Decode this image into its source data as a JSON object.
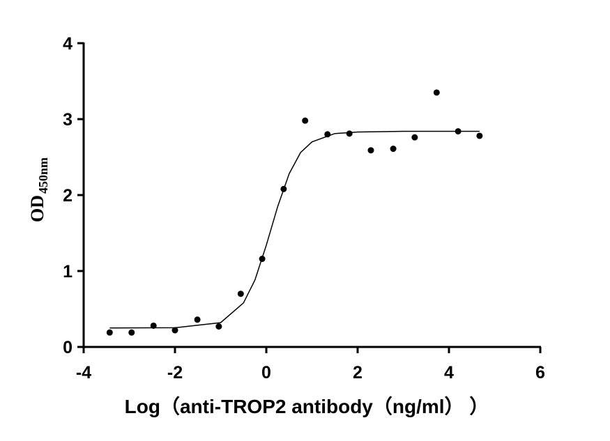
{
  "chart_data": {
    "type": "scatter",
    "x_label": "Log（anti-TROP2 antibody（ng/ml）  ）",
    "y_label": "OD",
    "y_label_subscript": "450nm",
    "xlim": [
      -4,
      6
    ],
    "xticks": [
      -4,
      -2,
      0,
      2,
      4,
      6
    ],
    "ylim": [
      0,
      4
    ],
    "yticks": [
      0,
      1,
      2,
      3,
      4
    ],
    "series": [
      {
        "style": "points",
        "color": "#000000",
        "x": [
          -3.43,
          -2.95,
          -2.47,
          -2.0,
          -1.51,
          -1.04,
          -0.56,
          -0.09,
          0.38,
          0.85,
          1.34,
          1.82,
          2.29,
          2.78,
          3.25,
          3.73,
          4.2,
          4.67
        ],
        "values": [
          0.19,
          0.19,
          0.28,
          0.22,
          0.36,
          0.27,
          0.7,
          1.16,
          2.08,
          2.98,
          2.8,
          2.81,
          2.59,
          2.61,
          2.76,
          3.35,
          2.84,
          2.78
        ]
      },
      {
        "style": "line",
        "color": "#000000",
        "x": [
          -3.43,
          -2,
          -1,
          -0.5,
          -0.25,
          0,
          0.25,
          0.5,
          0.75,
          1,
          1.5,
          2,
          3,
          4.67
        ],
        "values": [
          0.25,
          0.253,
          0.32,
          0.58,
          0.88,
          1.34,
          1.85,
          2.28,
          2.56,
          2.7,
          2.81,
          2.83,
          2.84,
          2.84
        ]
      }
    ]
  }
}
